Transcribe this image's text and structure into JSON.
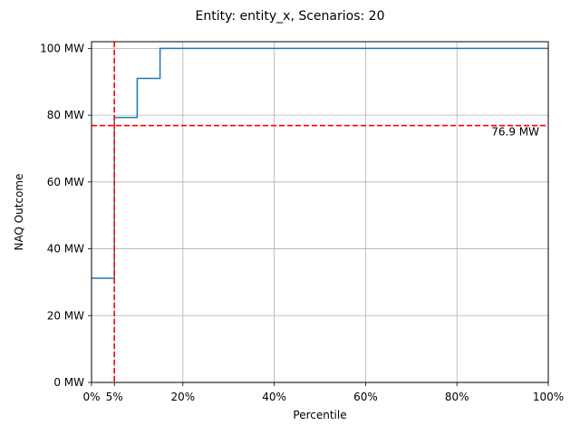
{
  "chart_data": {
    "type": "line",
    "title": "Entity: entity_x, Scenarios: 20",
    "xlabel": "Percentile",
    "ylabel": "NAQ Outcome",
    "xlim": [
      0,
      100
    ],
    "ylim": [
      0,
      102
    ],
    "x_ticks": [
      {
        "value": 0,
        "label": "0%"
      },
      {
        "value": 5,
        "label": "5%"
      },
      {
        "value": 20,
        "label": "20%"
      },
      {
        "value": 40,
        "label": "40%"
      },
      {
        "value": 60,
        "label": "60%"
      },
      {
        "value": 80,
        "label": "80%"
      },
      {
        "value": 100,
        "label": "100%"
      }
    ],
    "y_ticks": [
      {
        "value": 0,
        "label": "0 MW"
      },
      {
        "value": 20,
        "label": "20 MW"
      },
      {
        "value": 40,
        "label": "40 MW"
      },
      {
        "value": 60,
        "label": "60 MW"
      },
      {
        "value": 80,
        "label": "80 MW"
      },
      {
        "value": 100,
        "label": "100 MW"
      }
    ],
    "grid": true,
    "series": [
      {
        "color": "#1f77b4",
        "step": "post",
        "x": [
          0,
          5,
          10,
          15,
          100
        ],
        "y": [
          31.2,
          79.3,
          91.0,
          100,
          100
        ]
      }
    ],
    "reference_lines": [
      {
        "orientation": "vertical",
        "value": 5,
        "color": "#ff0000",
        "style": "dashed"
      },
      {
        "orientation": "horizontal",
        "value": 76.9,
        "color": "#ff0000",
        "style": "dashed",
        "label": "76.9 MW"
      }
    ]
  }
}
